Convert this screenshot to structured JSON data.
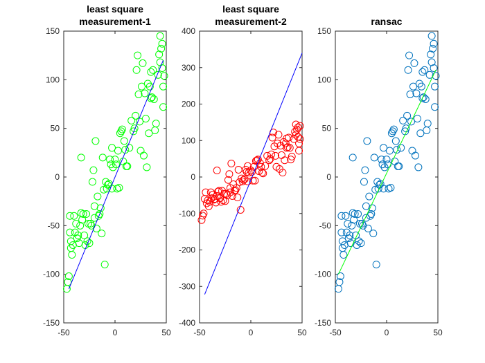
{
  "chart_data": [
    {
      "type": "scatter",
      "title_lines": [
        "least square",
        "measurement-1"
      ],
      "xlabel": "",
      "ylabel": "",
      "xlim": [
        -50,
        50
      ],
      "ylim": [
        -150,
        150
      ],
      "xticks": [
        -50,
        0,
        50
      ],
      "yticks": [
        -150,
        -100,
        -50,
        0,
        50,
        100,
        150
      ],
      "grid": false,
      "point_color": "#00ff00",
      "fit_line": {
        "color": "#0000ff",
        "x": [
          -45,
          47
        ],
        "y": [
          -115,
          120
        ]
      },
      "points": [
        [
          -47,
          -115
        ],
        [
          -46,
          -108
        ],
        [
          -45,
          -102
        ],
        [
          -44,
          -57
        ],
        [
          -44,
          -40
        ],
        [
          -43,
          -73
        ],
        [
          -43,
          -66
        ],
        [
          -42,
          -80
        ],
        [
          -41,
          -70
        ],
        [
          -40,
          -40
        ],
        [
          -39,
          -57
        ],
        [
          -38,
          -48
        ],
        [
          -37,
          -63
        ],
        [
          -36,
          -60
        ],
        [
          -35,
          -68
        ],
        [
          -34,
          -50
        ],
        [
          -33,
          -37
        ],
        [
          -33,
          20
        ],
        [
          -32,
          -44
        ],
        [
          -31,
          -38
        ],
        [
          -30,
          -60
        ],
        [
          -29,
          -70
        ],
        [
          -28,
          -38
        ],
        [
          -27,
          -66
        ],
        [
          -26,
          -48
        ],
        [
          -25,
          -68
        ],
        [
          -24,
          -48
        ],
        [
          -23,
          -50
        ],
        [
          -22,
          -5
        ],
        [
          -21,
          7
        ],
        [
          -20,
          -30
        ],
        [
          -20,
          -42
        ],
        [
          -19,
          37
        ],
        [
          -18,
          -53
        ],
        [
          -17,
          -20
        ],
        [
          -16,
          -40
        ],
        [
          -15,
          -38
        ],
        [
          -14,
          -32
        ],
        [
          -13,
          -58
        ],
        [
          -12,
          20
        ],
        [
          -11,
          -13
        ],
        [
          -10,
          -90
        ],
        [
          -9,
          -5
        ],
        [
          -8,
          -12
        ],
        [
          -7,
          -8
        ],
        [
          -6,
          -7
        ],
        [
          -5,
          18
        ],
        [
          -4,
          13
        ],
        [
          -3,
          -12
        ],
        [
          -3,
          30
        ],
        [
          -2,
          10
        ],
        [
          0,
          18
        ],
        [
          1,
          13
        ],
        [
          2,
          -12
        ],
        [
          3,
          27
        ],
        [
          4,
          -11
        ],
        [
          5,
          45
        ],
        [
          6,
          47
        ],
        [
          7,
          49
        ],
        [
          8,
          16
        ],
        [
          9,
          37
        ],
        [
          10,
          28
        ],
        [
          11,
          11
        ],
        [
          12,
          11
        ],
        [
          14,
          30
        ],
        [
          16,
          58
        ],
        [
          18,
          47
        ],
        [
          19,
          50
        ],
        [
          20,
          63
        ],
        [
          21,
          110
        ],
        [
          22,
          125
        ],
        [
          23,
          85
        ],
        [
          24,
          57
        ],
        [
          25,
          27
        ],
        [
          26,
          93
        ],
        [
          27,
          117
        ],
        [
          28,
          22
        ],
        [
          29,
          86
        ],
        [
          30,
          60
        ],
        [
          31,
          10
        ],
        [
          32,
          96
        ],
        [
          33,
          45
        ],
        [
          34,
          93
        ],
        [
          35,
          108
        ],
        [
          35,
          81
        ],
        [
          36,
          82
        ],
        [
          37,
          110
        ],
        [
          38,
          80
        ],
        [
          39,
          48
        ],
        [
          40,
          55
        ],
        [
          42,
          105
        ],
        [
          43,
          126
        ],
        [
          44,
          118
        ],
        [
          44,
          145
        ],
        [
          45,
          132
        ],
        [
          46,
          137
        ],
        [
          46,
          112
        ],
        [
          47,
          93
        ],
        [
          47,
          72
        ],
        [
          48,
          104
        ]
      ]
    },
    {
      "type": "scatter",
      "title_lines": [
        "least square",
        "measurement-2"
      ],
      "xlabel": "",
      "ylabel": "",
      "xlim": [
        -50,
        50
      ],
      "ylim": [
        -400,
        400
      ],
      "xticks": [
        -50,
        0,
        50
      ],
      "yticks": [
        -400,
        -300,
        -200,
        -100,
        0,
        100,
        200,
        300,
        400
      ],
      "grid": false,
      "point_color": "#ff0000",
      "fit_line": {
        "color": "#0000ff",
        "x": [
          -45,
          50
        ],
        "y": [
          -322,
          340
        ]
      },
      "points": [
        [
          -48,
          -118
        ],
        [
          -47,
          -106
        ],
        [
          -46,
          -100
        ],
        [
          -45,
          -60
        ],
        [
          -44,
          -42
        ],
        [
          -43,
          -72
        ],
        [
          -42,
          -64
        ],
        [
          -41,
          -80
        ],
        [
          -40,
          -68
        ],
        [
          -39,
          -42
        ],
        [
          -38,
          -58
        ],
        [
          -37,
          -48
        ],
        [
          -36,
          -62
        ],
        [
          -35,
          -60
        ],
        [
          -34,
          -70
        ],
        [
          -33,
          -52
        ],
        [
          -33,
          18
        ],
        [
          -32,
          -40
        ],
        [
          -31,
          -38
        ],
        [
          -30,
          -58
        ],
        [
          -29,
          -68
        ],
        [
          -28,
          -38
        ],
        [
          -27,
          -64
        ],
        [
          -26,
          -46
        ],
        [
          -25,
          -66
        ],
        [
          -24,
          -46
        ],
        [
          -23,
          -50
        ],
        [
          -22,
          -8
        ],
        [
          -21,
          8
        ],
        [
          -20,
          -30
        ],
        [
          -20,
          -42
        ],
        [
          -19,
          37
        ],
        [
          -18,
          -52
        ],
        [
          -17,
          -20
        ],
        [
          -16,
          -38
        ],
        [
          -15,
          -36
        ],
        [
          -14,
          -30
        ],
        [
          -13,
          -56
        ],
        [
          -12,
          20
        ],
        [
          -11,
          -14
        ],
        [
          -10,
          -90
        ],
        [
          -9,
          -4
        ],
        [
          -8,
          -12
        ],
        [
          -7,
          -8
        ],
        [
          -6,
          -6
        ],
        [
          -5,
          20
        ],
        [
          -4,
          14
        ],
        [
          -3,
          -12
        ],
        [
          -3,
          30
        ],
        [
          -2,
          12
        ],
        [
          0,
          18
        ],
        [
          1,
          14
        ],
        [
          2,
          -10
        ],
        [
          3,
          28
        ],
        [
          4,
          -10
        ],
        [
          5,
          44
        ],
        [
          6,
          46
        ],
        [
          7,
          48
        ],
        [
          8,
          16
        ],
        [
          9,
          38
        ],
        [
          10,
          28
        ],
        [
          11,
          12
        ],
        [
          12,
          10
        ],
        [
          14,
          30
        ],
        [
          16,
          58
        ],
        [
          18,
          46
        ],
        [
          19,
          50
        ],
        [
          20,
          62
        ],
        [
          21,
          108
        ],
        [
          22,
          122
        ],
        [
          23,
          84
        ],
        [
          24,
          58
        ],
        [
          25,
          28
        ],
        [
          26,
          92
        ],
        [
          27,
          116
        ],
        [
          28,
          22
        ],
        [
          29,
          86
        ],
        [
          30,
          60
        ],
        [
          31,
          12
        ],
        [
          32,
          96
        ],
        [
          33,
          46
        ],
        [
          34,
          92
        ],
        [
          35,
          106
        ],
        [
          35,
          80
        ],
        [
          36,
          82
        ],
        [
          37,
          108
        ],
        [
          38,
          80
        ],
        [
          39,
          48
        ],
        [
          40,
          56
        ],
        [
          42,
          104
        ],
        [
          43,
          124
        ],
        [
          44,
          116
        ],
        [
          44,
          144
        ],
        [
          45,
          130
        ],
        [
          46,
          136
        ],
        [
          46,
          110
        ],
        [
          47,
          92
        ],
        [
          47,
          72
        ],
        [
          48,
          104
        ],
        [
          48,
          140
        ]
      ]
    },
    {
      "type": "scatter",
      "title_lines": [
        "ransac"
      ],
      "xlabel": "",
      "ylabel": "",
      "xlim": [
        -50,
        50
      ],
      "ylim": [
        -150,
        150
      ],
      "xticks": [
        -50,
        0,
        50
      ],
      "yticks": [
        -150,
        -100,
        -50,
        0,
        50,
        100,
        150
      ],
      "grid": false,
      "point_color": "#0072bd",
      "fit_line": {
        "color": "#00ff00",
        "x": [
          -47,
          48
        ],
        "y": [
          -100,
          110
        ]
      },
      "points": [
        [
          -47,
          -115
        ],
        [
          -46,
          -108
        ],
        [
          -45,
          -102
        ],
        [
          -44,
          -57
        ],
        [
          -44,
          -40
        ],
        [
          -43,
          -73
        ],
        [
          -43,
          -66
        ],
        [
          -42,
          -80
        ],
        [
          -41,
          -70
        ],
        [
          -40,
          -40
        ],
        [
          -39,
          -57
        ],
        [
          -38,
          -48
        ],
        [
          -37,
          -63
        ],
        [
          -36,
          -60
        ],
        [
          -35,
          -68
        ],
        [
          -34,
          -50
        ],
        [
          -33,
          -37
        ],
        [
          -33,
          20
        ],
        [
          -32,
          -44
        ],
        [
          -31,
          -38
        ],
        [
          -30,
          -60
        ],
        [
          -29,
          -70
        ],
        [
          -28,
          -38
        ],
        [
          -27,
          -66
        ],
        [
          -26,
          -48
        ],
        [
          -25,
          -68
        ],
        [
          -24,
          -48
        ],
        [
          -23,
          -50
        ],
        [
          -22,
          -5
        ],
        [
          -21,
          7
        ],
        [
          -20,
          -30
        ],
        [
          -20,
          -42
        ],
        [
          -19,
          37
        ],
        [
          -18,
          -53
        ],
        [
          -17,
          -20
        ],
        [
          -16,
          -40
        ],
        [
          -15,
          -38
        ],
        [
          -14,
          -32
        ],
        [
          -13,
          -58
        ],
        [
          -12,
          20
        ],
        [
          -11,
          -13
        ],
        [
          -10,
          -90
        ],
        [
          -9,
          -5
        ],
        [
          -8,
          -12
        ],
        [
          -7,
          -8
        ],
        [
          -6,
          -7
        ],
        [
          -5,
          18
        ],
        [
          -4,
          13
        ],
        [
          -3,
          -12
        ],
        [
          -3,
          30
        ],
        [
          -2,
          10
        ],
        [
          0,
          18
        ],
        [
          1,
          13
        ],
        [
          2,
          -12
        ],
        [
          3,
          27
        ],
        [
          4,
          -11
        ],
        [
          5,
          45
        ],
        [
          6,
          47
        ],
        [
          7,
          49
        ],
        [
          8,
          16
        ],
        [
          9,
          37
        ],
        [
          10,
          28
        ],
        [
          11,
          11
        ],
        [
          12,
          11
        ],
        [
          14,
          30
        ],
        [
          16,
          58
        ],
        [
          18,
          47
        ],
        [
          19,
          50
        ],
        [
          20,
          63
        ],
        [
          21,
          110
        ],
        [
          22,
          125
        ],
        [
          23,
          85
        ],
        [
          24,
          57
        ],
        [
          25,
          27
        ],
        [
          26,
          93
        ],
        [
          27,
          117
        ],
        [
          28,
          22
        ],
        [
          29,
          86
        ],
        [
          30,
          60
        ],
        [
          31,
          10
        ],
        [
          32,
          96
        ],
        [
          33,
          45
        ],
        [
          34,
          93
        ],
        [
          35,
          108
        ],
        [
          35,
          81
        ],
        [
          36,
          82
        ],
        [
          37,
          110
        ],
        [
          38,
          80
        ],
        [
          39,
          48
        ],
        [
          40,
          55
        ],
        [
          42,
          105
        ],
        [
          43,
          126
        ],
        [
          44,
          118
        ],
        [
          44,
          145
        ],
        [
          45,
          132
        ],
        [
          46,
          137
        ],
        [
          46,
          112
        ],
        [
          47,
          93
        ],
        [
          47,
          72
        ],
        [
          48,
          104
        ]
      ]
    }
  ]
}
